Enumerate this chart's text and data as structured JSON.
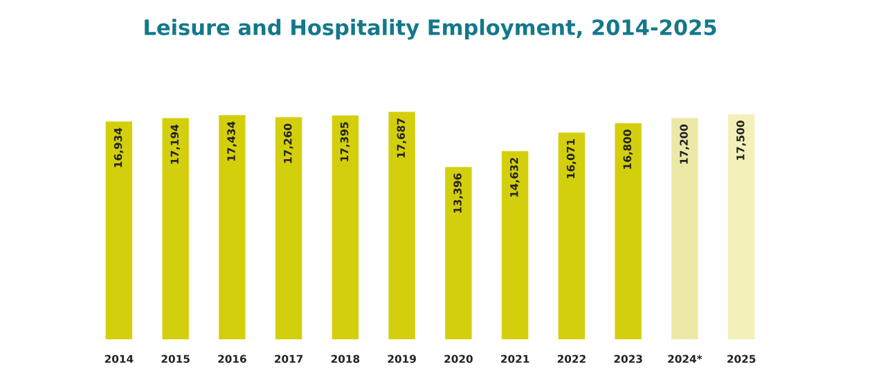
{
  "chart_data": {
    "type": "bar",
    "title": "Leisure and Hospitality Employment, 2014-2025",
    "categories": [
      "2014",
      "2015",
      "2016",
      "2017",
      "2018",
      "2019",
      "2020",
      "2021",
      "2022",
      "2023",
      "2024*",
      "2025"
    ],
    "values": [
      16934,
      17194,
      17434,
      17260,
      17395,
      17687,
      13396,
      14632,
      16071,
      16800,
      17200,
      17500
    ],
    "colors": [
      "#d4cf0c",
      "#d4cf0c",
      "#d4cf0c",
      "#d4cf0c",
      "#d4cf0c",
      "#d4cf0c",
      "#d4cf0c",
      "#d4cf0c",
      "#d4cf0c",
      "#d4cf0c",
      "#ece9a6",
      "#f3f0b8"
    ],
    "value_labels": [
      "16,934",
      "17,194",
      "17,434",
      "17,260",
      "17,395",
      "17,687",
      "13,396",
      "14,632",
      "16,071",
      "16,800",
      "17,200",
      "17,500"
    ],
    "grid": false,
    "legend": false
  }
}
